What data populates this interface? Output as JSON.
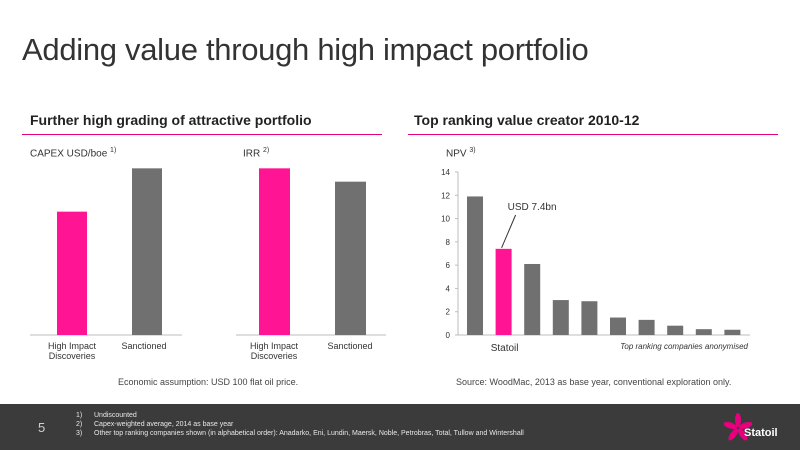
{
  "title": "Adding value through high impact portfolio",
  "left_section": {
    "title": "Further high grading of attractive portfolio",
    "footnote": "Economic assumption: USD 100 flat oil price."
  },
  "right_section": {
    "title": "Top ranking value creator  2010-12",
    "source": "Source: WoodMac, 2013 as base year, conventional exploration only."
  },
  "colors": {
    "accent": "#ff1493",
    "bar": "#707070",
    "rule": "#e6007e",
    "footer": "#3b3b3b"
  },
  "chart_data": [
    {
      "type": "bar",
      "ylabel": "CAPEX USD/boe",
      "ylabel_note": "1)",
      "categories": [
        "High Impact Discoveries",
        "Sanctioned"
      ],
      "category_lines": [
        [
          "High Impact",
          "Discoveries"
        ],
        [
          "Sanctioned"
        ]
      ],
      "values": [
        0.74,
        1.0
      ],
      "ylim": [
        0,
        1.05
      ],
      "colors": [
        "#ff1493",
        "#707070"
      ],
      "grid": false,
      "legend": "none"
    },
    {
      "type": "bar",
      "ylabel": "IRR",
      "ylabel_note": "2)",
      "categories": [
        "High Impact Discoveries",
        "Sanctioned"
      ],
      "category_lines": [
        [
          "High Impact",
          "Discoveries"
        ],
        [
          "Sanctioned"
        ]
      ],
      "values": [
        1.0,
        0.92
      ],
      "ylim": [
        0,
        1.05
      ],
      "colors": [
        "#ff1493",
        "#707070"
      ],
      "grid": false,
      "legend": "none"
    },
    {
      "type": "bar",
      "ylabel": "NPV",
      "ylabel_note": "3)",
      "values": [
        11.9,
        7.4,
        6.1,
        3.0,
        2.9,
        1.5,
        1.3,
        0.8,
        0.5,
        0.45
      ],
      "highlight_index": 1,
      "ylim": [
        0,
        14
      ],
      "yticks": [
        0,
        2,
        4,
        6,
        8,
        10,
        12,
        14
      ],
      "annotation": "USD 7.4bn",
      "x_label_highlight": "Statoil",
      "x_label_others": "Top ranking companies anonymised",
      "colors": [
        "#707070",
        "#ff1493"
      ],
      "grid": false,
      "legend": "none"
    }
  ],
  "footer": {
    "page_number": "5",
    "notes": [
      {
        "num": "1)",
        "text": "Undiscounted"
      },
      {
        "num": "2)",
        "text": "Capex-weighted average, 2014 as base year"
      },
      {
        "num": "3)",
        "text": "Other top ranking companies shown (in alphabetical order): Anadarko, Eni, Lundin, Maersk, Noble, Petrobras, Total, Tullow and Wintershall"
      }
    ],
    "logo_text": "Statoil"
  }
}
